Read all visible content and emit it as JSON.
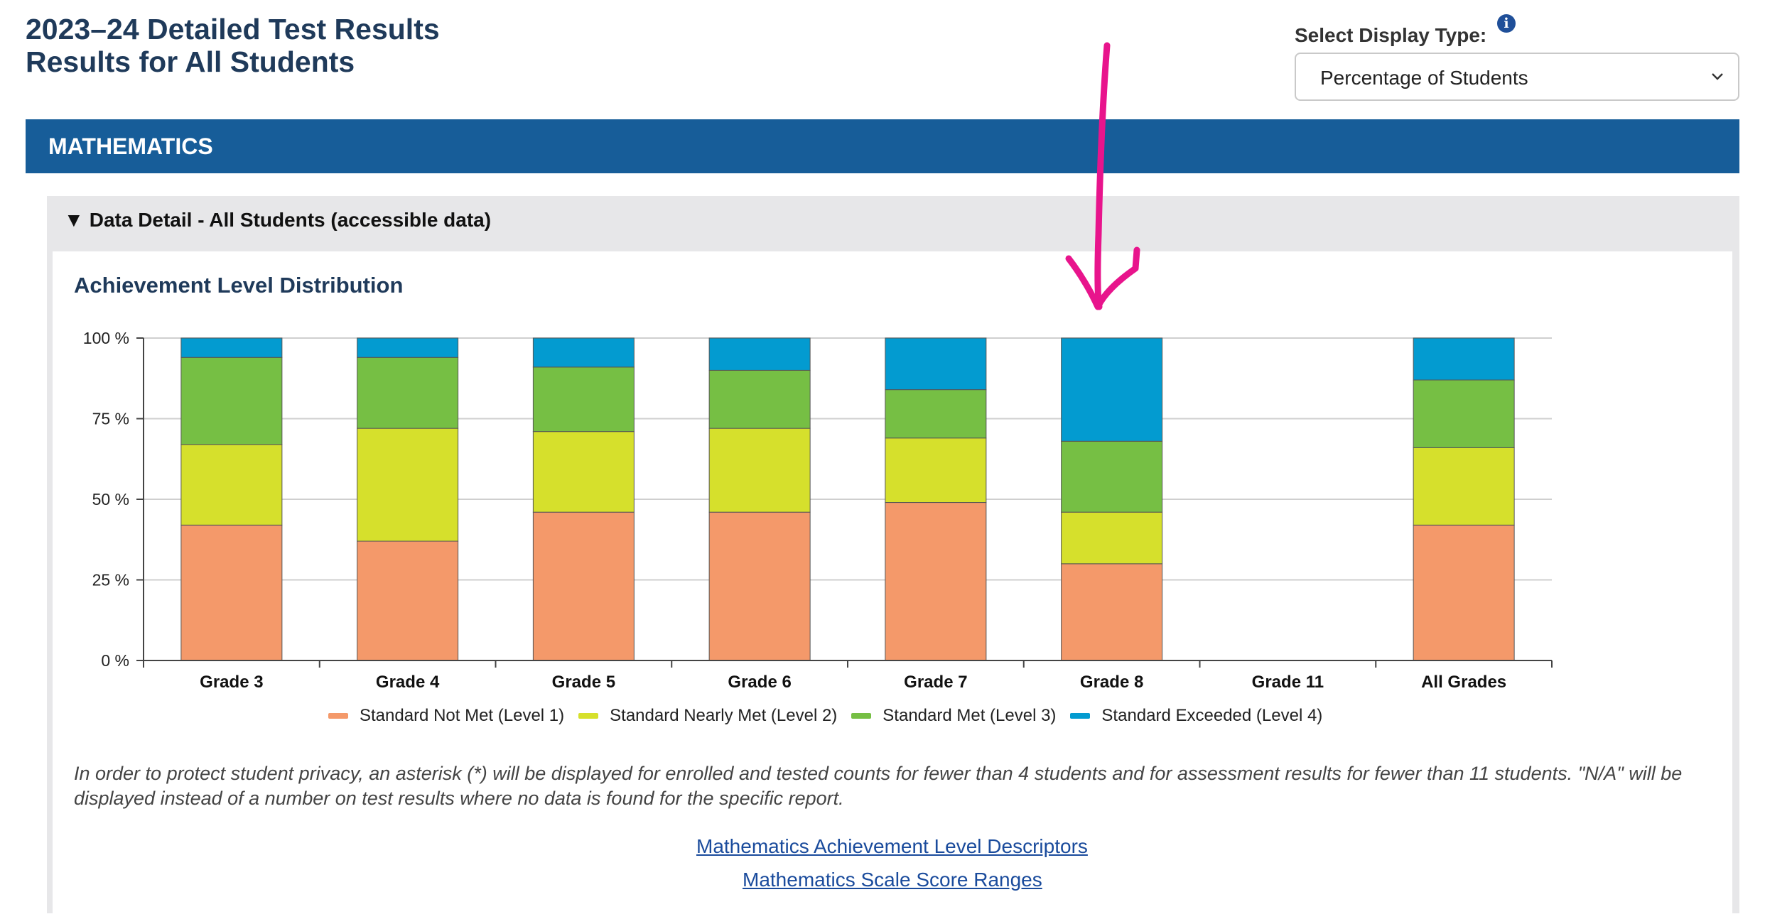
{
  "header": {
    "title_line1": "2023–24 Detailed Test Results",
    "title_line2": "Results for All Students",
    "display_type_label": "Select Display Type:",
    "info_icon_glyph": "i",
    "display_type_value": "Percentage of Students"
  },
  "subject_banner": {
    "label": "MATHEMATICS"
  },
  "detail_panel": {
    "toggle_glyph": "▼",
    "summary_label": "Data Detail - All Students (accessible data)"
  },
  "chart_data": {
    "type": "bar",
    "stacked": true,
    "title": "Achievement Level Distribution",
    "categories": [
      "Grade 3",
      "Grade 4",
      "Grade 5",
      "Grade 6",
      "Grade 7",
      "Grade 8",
      "Grade 11",
      "All Grades"
    ],
    "y_ticks": [
      "0 %",
      "25 %",
      "50 %",
      "75 %",
      "100 %"
    ],
    "ylim": [
      0,
      100
    ],
    "grid": true,
    "legend_position": "bottom",
    "series": [
      {
        "name": "Standard Not Met (Level 1)",
        "color": "#f4996a",
        "values": [
          42,
          37,
          46,
          46,
          49,
          30,
          null,
          42
        ]
      },
      {
        "name": "Standard Nearly Met (Level 2)",
        "color": "#d6e02c",
        "values": [
          25,
          35,
          25,
          26,
          20,
          16,
          null,
          24
        ]
      },
      {
        "name": "Standard Met (Level 3)",
        "color": "#76bf44",
        "values": [
          27,
          22,
          20,
          18,
          15,
          22,
          null,
          21
        ]
      },
      {
        "name": "Standard Exceeded (Level 4)",
        "color": "#039bd0",
        "values": [
          6,
          6,
          9,
          10,
          16,
          32,
          null,
          13
        ]
      }
    ]
  },
  "notes": {
    "privacy": "In order to protect student privacy, an asterisk (*) will be displayed for enrolled and tested counts for fewer than 4 students and for assessment results for fewer than 11 students. \"N/A\" will be displayed instead of a number on test results where no data is found for the specific report."
  },
  "links": {
    "descriptors": "Mathematics Achievement Level Descriptors",
    "scale_ranges": "Mathematics Scale Score Ranges"
  },
  "colors": {
    "banner": "#175d99",
    "title": "#1f3a5a",
    "link": "#1a4b9c",
    "annotation_arrow": "#e8148c"
  }
}
